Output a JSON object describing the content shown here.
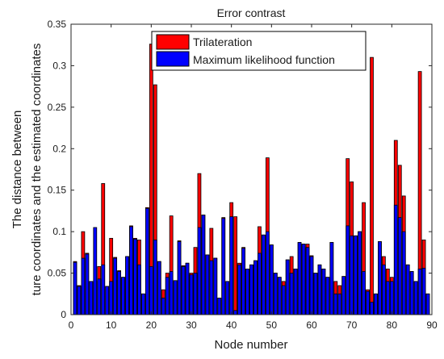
{
  "chart_data": {
    "type": "bar",
    "title": "Error contrast",
    "xlabel": "Node number",
    "ylabel": [
      "The distance between",
      "ture coordinates and the estimated coordinates"
    ],
    "xlim": [
      0,
      90
    ],
    "ylim": [
      0,
      0.35
    ],
    "xticks": [
      0,
      10,
      20,
      30,
      40,
      50,
      60,
      70,
      80,
      90
    ],
    "yticks": [
      0,
      0.05,
      0.1,
      0.15,
      0.2,
      0.25,
      0.3,
      0.35
    ],
    "ytick_labels": [
      "0",
      "0.05",
      "0.1",
      "0.15",
      "0.2",
      "0.25",
      "0.3",
      "0.35"
    ],
    "grid": false,
    "legend_position": "top",
    "overlay": true,
    "x": [
      1,
      2,
      3,
      4,
      5,
      6,
      7,
      8,
      9,
      10,
      11,
      12,
      13,
      14,
      15,
      16,
      17,
      18,
      19,
      20,
      21,
      22,
      23,
      24,
      25,
      26,
      27,
      28,
      29,
      30,
      31,
      32,
      33,
      34,
      35,
      36,
      37,
      38,
      39,
      40,
      41,
      42,
      43,
      44,
      45,
      46,
      47,
      48,
      49,
      50,
      51,
      52,
      53,
      54,
      55,
      56,
      57,
      58,
      59,
      60,
      61,
      62,
      63,
      64,
      65,
      66,
      67,
      68,
      69,
      70,
      71,
      72,
      73,
      74,
      75,
      76,
      77,
      78,
      79,
      80,
      81,
      82,
      83,
      84,
      85,
      86,
      87,
      88,
      89
    ],
    "series": [
      {
        "name": "Trilateration",
        "color": "#ff0000",
        "values": [
          0.064,
          0.035,
          0.1,
          0.074,
          0.04,
          0.04,
          0.058,
          0.158,
          0.034,
          0.092,
          0.069,
          0.053,
          0.045,
          0.07,
          0.107,
          0.092,
          0.09,
          0.025,
          0.129,
          0.326,
          0.277,
          0.064,
          0.03,
          0.05,
          0.119,
          0.041,
          0.089,
          0.059,
          0.062,
          0.05,
          0.081,
          0.17,
          0.12,
          0.072,
          0.104,
          0.068,
          0.02,
          0.117,
          0.04,
          0.135,
          0.118,
          0.062,
          0.081,
          0.055,
          0.06,
          0.065,
          0.106,
          0.096,
          0.189,
          0.084,
          0.05,
          0.045,
          0.04,
          0.066,
          0.07,
          0.055,
          0.087,
          0.085,
          0.085,
          0.071,
          0.05,
          0.06,
          0.055,
          0.045,
          0.087,
          0.04,
          0.035,
          0.046,
          0.188,
          0.16,
          0.095,
          0.1,
          0.135,
          0.03,
          0.31,
          0.025,
          0.088,
          0.07,
          0.055,
          0.045,
          0.21,
          0.18,
          0.143,
          0.06,
          0.052,
          0.04,
          0.293,
          0.09,
          0.025
        ]
      },
      {
        "name": "Maximum likelihood function",
        "color": "#0000ff",
        "values": [
          0.063,
          0.034,
          0.068,
          0.073,
          0.04,
          0.105,
          0.043,
          0.06,
          0.034,
          0.04,
          0.068,
          0.052,
          0.045,
          0.07,
          0.106,
          0.091,
          0.06,
          0.025,
          0.128,
          0.058,
          0.09,
          0.064,
          0.02,
          0.045,
          0.052,
          0.041,
          0.088,
          0.058,
          0.062,
          0.048,
          0.05,
          0.105,
          0.12,
          0.072,
          0.065,
          0.068,
          0.02,
          0.116,
          0.04,
          0.118,
          0.005,
          0.06,
          0.08,
          0.055,
          0.06,
          0.065,
          0.074,
          0.096,
          0.1,
          0.084,
          0.05,
          0.045,
          0.035,
          0.066,
          0.05,
          0.055,
          0.087,
          0.085,
          0.081,
          0.07,
          0.05,
          0.06,
          0.055,
          0.045,
          0.087,
          0.025,
          0.025,
          0.046,
          0.107,
          0.095,
          0.095,
          0.1,
          0.052,
          0.028,
          0.015,
          0.025,
          0.088,
          0.06,
          0.04,
          0.04,
          0.132,
          0.117,
          0.1,
          0.06,
          0.052,
          0.04,
          0.055,
          0.056,
          0.025
        ]
      }
    ]
  }
}
